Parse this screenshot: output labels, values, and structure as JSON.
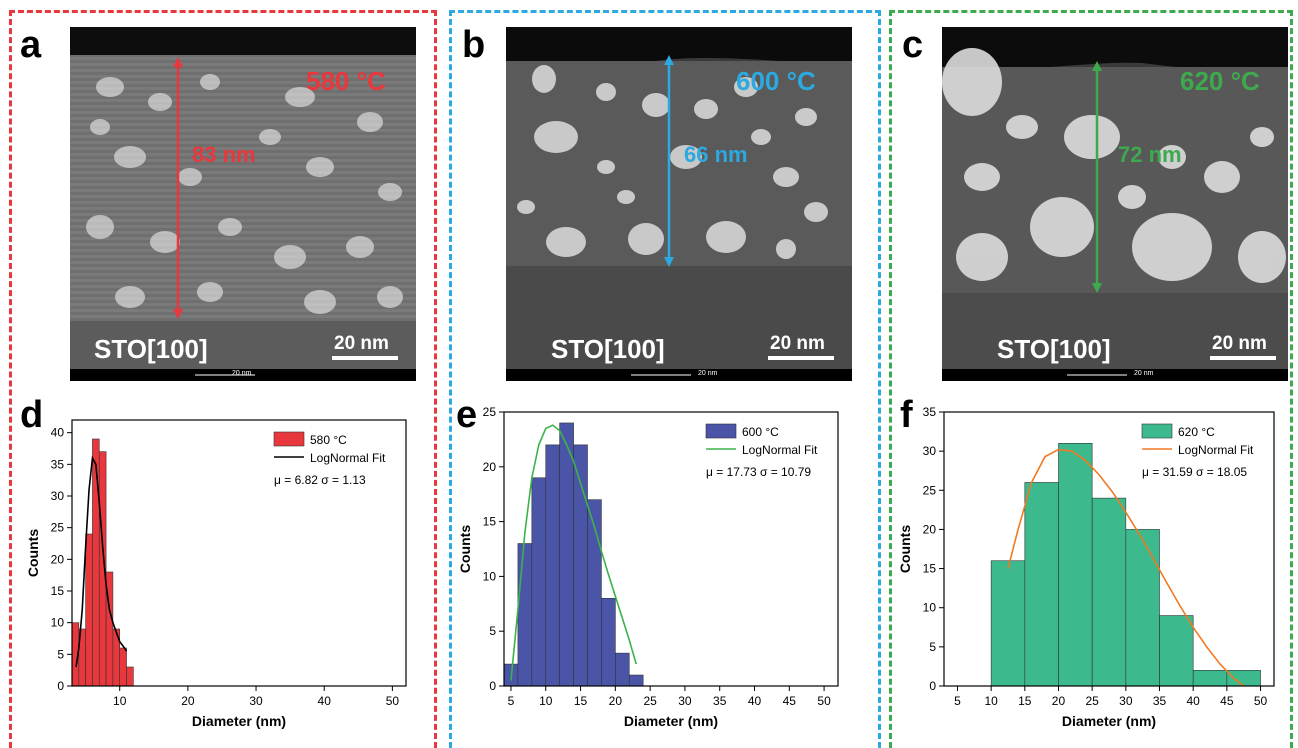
{
  "colors": {
    "red": "#e8383d",
    "blue": "#2ba9e0",
    "green": "#3daa4e",
    "bar_red": "#e8383d",
    "bar_blue": "#4a55a8",
    "bar_green": "#3cb98d",
    "fit_black": "#000000",
    "fit_green": "#3cb34a",
    "fit_orange": "#f07a22"
  },
  "micrographs": [
    {
      "letter": "a",
      "temperature": "580 °C",
      "thickness": "83 nm",
      "substrate": "STO[100]",
      "scale": "20 nm",
      "scale_small": "20 nm"
    },
    {
      "letter": "b",
      "temperature": "600 °C",
      "thickness": "66 nm",
      "substrate": "STO[100]",
      "scale": "20 nm",
      "scale_small": "20 nm"
    },
    {
      "letter": "c",
      "temperature": "620 °C",
      "thickness": "72 nm",
      "substrate": "STO[100]",
      "scale": "20 nm",
      "scale_small": "20 nm"
    }
  ],
  "chart_data": [
    {
      "panel": "d",
      "type": "bar",
      "xlabel": "Diameter (nm)",
      "ylabel": "Counts",
      "xlim": [
        3,
        52
      ],
      "ylim": [
        0,
        42
      ],
      "xticks": [
        10,
        20,
        30,
        40,
        50
      ],
      "yticks": [
        0,
        5,
        10,
        15,
        20,
        25,
        30,
        35,
        40
      ],
      "bin_width": 1,
      "bins": [
        3,
        4,
        5,
        6,
        7,
        8,
        9,
        10,
        11
      ],
      "values": [
        10,
        9,
        24,
        39,
        37,
        18,
        9,
        6,
        3
      ],
      "fit_x": [
        3.6,
        4,
        4.5,
        5,
        5.5,
        6,
        6.5,
        7,
        7.5,
        8,
        8.5,
        9,
        9.5,
        10,
        10.5,
        11
      ],
      "fit_y": [
        3,
        6,
        12,
        22,
        31,
        36,
        35,
        29,
        22,
        16,
        12,
        10,
        8.5,
        7,
        6.3,
        5.5
      ],
      "legend": {
        "series": "580 °C",
        "fit": "LogNormal Fit",
        "stats": "μ = 6.82  σ = 1.13"
      }
    },
    {
      "panel": "e",
      "type": "bar",
      "xlabel": "Diameter (nm)",
      "ylabel": "Counts",
      "xlim": [
        4,
        52
      ],
      "ylim": [
        0,
        25
      ],
      "xticks": [
        5,
        10,
        15,
        20,
        25,
        30,
        35,
        40,
        45,
        50
      ],
      "yticks": [
        0,
        5,
        10,
        15,
        20,
        25
      ],
      "bin_width": 2,
      "bins": [
        4,
        6,
        8,
        10,
        12,
        14,
        16,
        18,
        20,
        22
      ],
      "values": [
        2,
        13,
        19,
        22,
        24,
        22,
        17,
        8,
        3,
        1
      ],
      "fit_x": [
        5,
        6,
        7,
        8,
        9,
        10,
        11,
        12,
        13,
        14,
        15,
        16,
        17,
        18,
        19,
        20,
        21,
        22,
        23
      ],
      "fit_y": [
        0.5,
        7,
        14,
        19,
        22,
        23.5,
        23.8,
        23.3,
        22,
        20.5,
        18.5,
        16.5,
        14.5,
        12.3,
        10.2,
        8.2,
        6.2,
        4.2,
        2
      ],
      "legend": {
        "series": "600 °C",
        "fit": "LogNormal Fit",
        "stats": "μ = 17.73  σ = 10.79"
      }
    },
    {
      "panel": "f",
      "type": "bar",
      "xlabel": "Diameter (nm)",
      "ylabel": "Counts",
      "xlim": [
        3,
        52
      ],
      "ylim": [
        0,
        35
      ],
      "xticks": [
        5,
        10,
        15,
        20,
        25,
        30,
        35,
        40,
        45,
        50
      ],
      "yticks": [
        0,
        5,
        10,
        15,
        20,
        25,
        30,
        35
      ],
      "bin_width": 5,
      "bins": [
        10,
        15,
        20,
        25,
        30,
        35,
        40,
        45
      ],
      "values": [
        16,
        26,
        31,
        24,
        20,
        9,
        2,
        2
      ],
      "fit_x": [
        12.5,
        14,
        16,
        18,
        20,
        22,
        24,
        26,
        28,
        30,
        32,
        34,
        36,
        38,
        40,
        42,
        44,
        46,
        47.5
      ],
      "fit_y": [
        15,
        20,
        26,
        29.3,
        30.2,
        30,
        28.8,
        27,
        24.8,
        22.2,
        19.4,
        16.4,
        13.3,
        10.3,
        7.5,
        5,
        2.8,
        1,
        0
      ],
      "legend": {
        "series": "620 °C",
        "fit": "LogNormal Fit",
        "stats": "μ = 31.59  σ = 18.05"
      }
    }
  ]
}
